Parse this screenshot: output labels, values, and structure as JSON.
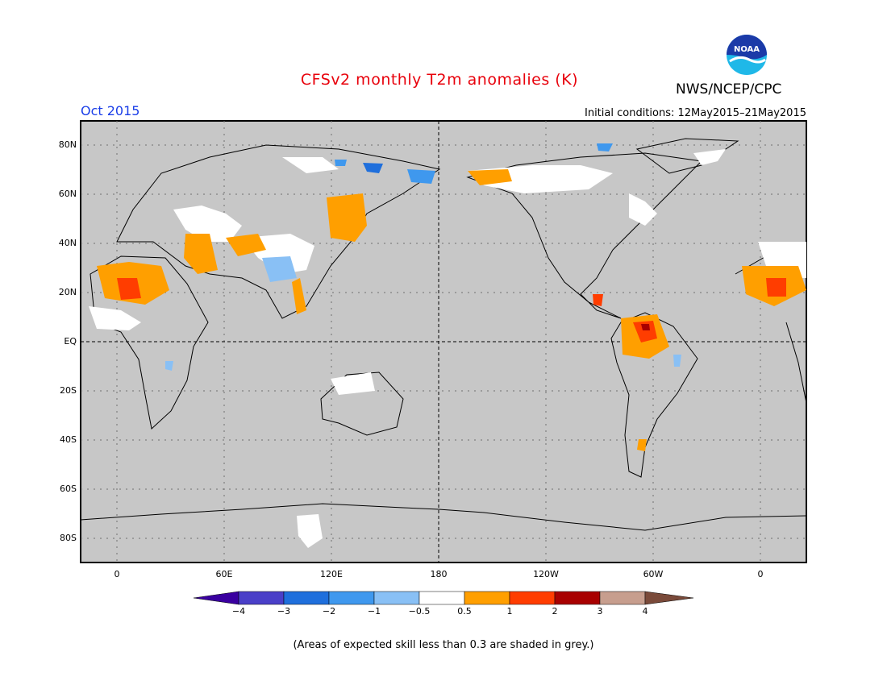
{
  "title": "CFSv2 monthly T2m anomalies (K)",
  "org": "NWS/NCEP/CPC",
  "logo_text": "NOAA",
  "month": "Oct 2015",
  "initial_conditions": "Initial conditions: 12May2015–21May2015",
  "note": "(Areas of expected skill less than 0.3 are shaded in grey.)",
  "colors": {
    "title": "#e8000b",
    "month": "#1a3ee8",
    "ocean": "#c7c7c7",
    "land_grey": "#c7c7c7"
  },
  "lat_labels": [
    "80N",
    "60N",
    "40N",
    "20N",
    "EQ",
    "20S",
    "40S",
    "60S",
    "80S"
  ],
  "lon_labels": [
    "0",
    "60E",
    "120E",
    "180",
    "120W",
    "60W",
    "0"
  ],
  "colorbar": {
    "labels": [
      "−4",
      "−3",
      "−2",
      "−1",
      "−0.5",
      "0.5",
      "1",
      "2",
      "3",
      "4"
    ],
    "colors": [
      "#3a00a0",
      "#4a3fc8",
      "#1f6fdc",
      "#3f98ee",
      "#89c0f5",
      "#ffffff",
      "#ff9f00",
      "#ff3d00",
      "#a80000",
      "#c79e8e",
      "#7a4a3a"
    ]
  }
}
